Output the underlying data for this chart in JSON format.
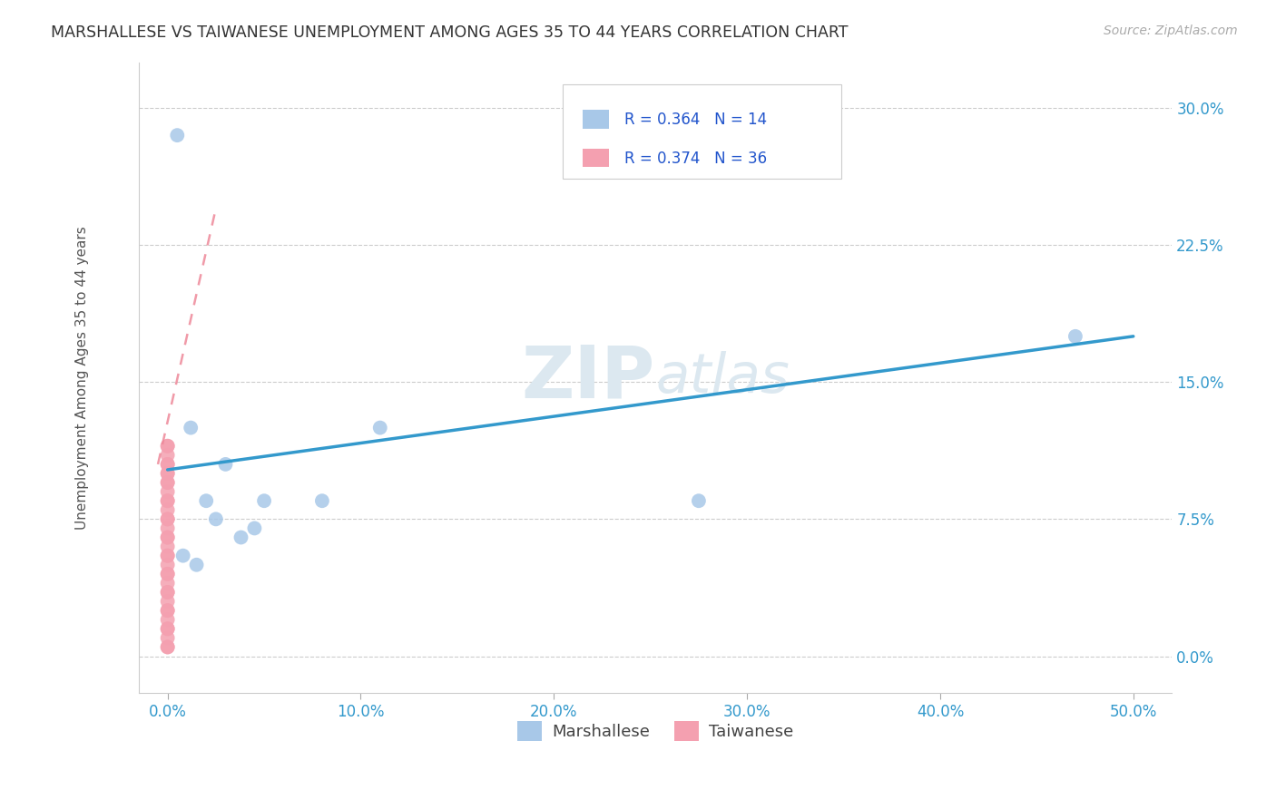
{
  "title": "MARSHALLESE VS TAIWANESE UNEMPLOYMENT AMONG AGES 35 TO 44 YEARS CORRELATION CHART",
  "source": "Source: ZipAtlas.com",
  "xlabel_vals": [
    0.0,
    10.0,
    20.0,
    30.0,
    40.0,
    50.0
  ],
  "ylabel_vals": [
    0.0,
    7.5,
    15.0,
    22.5,
    30.0
  ],
  "xlim": [
    -1.5,
    52.0
  ],
  "ylim": [
    -2.0,
    32.5
  ],
  "marshallese_x": [
    0.5,
    1.2,
    2.0,
    2.5,
    3.0,
    3.8,
    4.5,
    5.0,
    8.0,
    11.0,
    27.5,
    47.0,
    0.8,
    1.5
  ],
  "marshallese_y": [
    28.5,
    12.5,
    8.5,
    7.5,
    10.5,
    6.5,
    7.0,
    8.5,
    8.5,
    12.5,
    8.5,
    17.5,
    5.5,
    5.0
  ],
  "taiwanese_x": [
    0.0,
    0.0,
    0.0,
    0.0,
    0.0,
    0.0,
    0.0,
    0.0,
    0.0,
    0.0,
    0.0,
    0.0,
    0.0,
    0.0,
    0.0,
    0.0,
    0.0,
    0.0,
    0.0,
    0.0,
    0.0,
    0.0,
    0.0,
    0.0,
    0.0,
    0.0,
    0.0,
    0.0,
    0.0,
    0.0,
    0.0,
    0.0,
    0.0,
    0.0,
    0.0,
    0.0
  ],
  "taiwanese_y": [
    0.5,
    1.0,
    1.5,
    2.0,
    2.5,
    3.0,
    3.5,
    4.0,
    4.5,
    5.0,
    5.5,
    6.0,
    6.5,
    7.0,
    7.5,
    8.0,
    8.5,
    9.0,
    9.5,
    10.0,
    10.5,
    11.0,
    11.5,
    10.5,
    9.5,
    8.5,
    7.5,
    6.5,
    5.5,
    4.5,
    3.5,
    2.5,
    1.5,
    0.5,
    10.0,
    11.5
  ],
  "blue_line_x": [
    0.0,
    50.0
  ],
  "blue_line_y": [
    10.2,
    17.5
  ],
  "pink_line_x": [
    -0.5,
    2.5
  ],
  "pink_line_y": [
    10.5,
    24.5
  ],
  "R_marshallese": "0.364",
  "N_marshallese": "14",
  "R_taiwanese": "0.374",
  "N_taiwanese": "36",
  "blue_scatter_color": "#a8c8e8",
  "blue_line_color": "#3399cc",
  "pink_scatter_color": "#f4a0b0",
  "pink_line_color": "#ee8899",
  "watermark_zip": "ZIP",
  "watermark_atlas": "atlas",
  "watermark_color": "#dce8f0",
  "grid_color": "#cccccc",
  "bg_color": "#ffffff",
  "marker_size": 130,
  "legend_color": "#2255cc",
  "tick_color": "#3399cc",
  "ylabel_label": "Unemployment Among Ages 35 to 44 years",
  "ylabel_color": "#555555"
}
